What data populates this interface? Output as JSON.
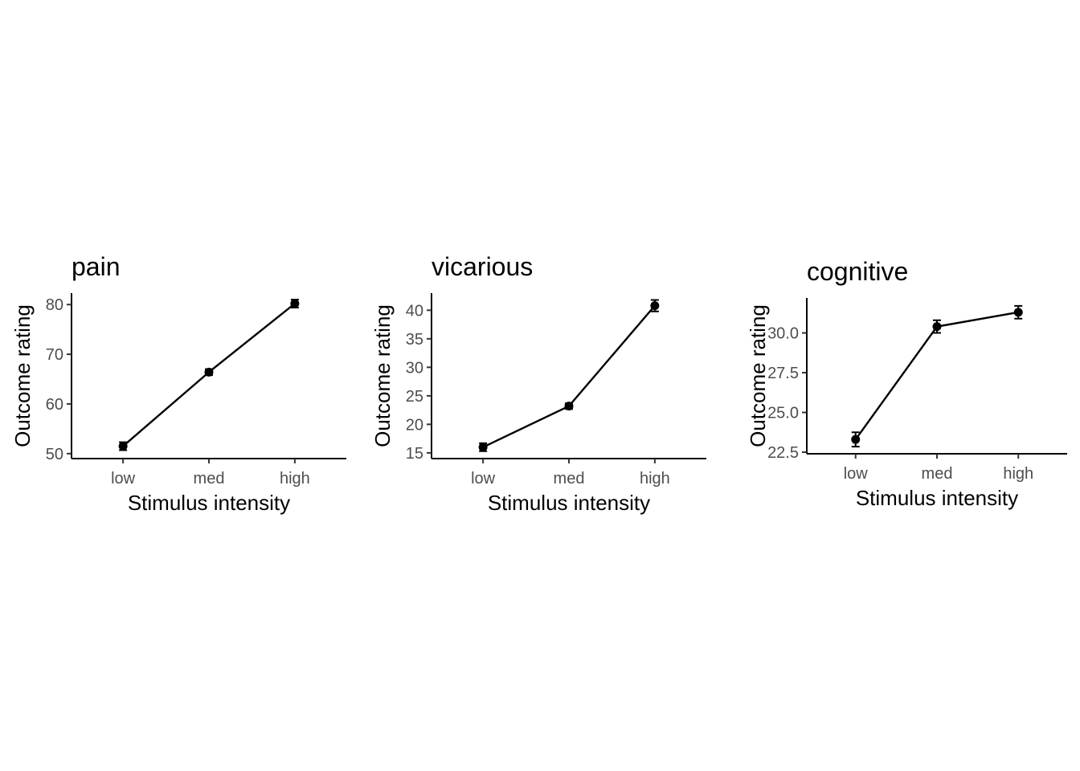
{
  "chart_data": [
    {
      "type": "line",
      "title": "pain",
      "xlabel": "Stimulus intensity",
      "ylabel": "Outcome rating",
      "categories": [
        "low",
        "med",
        "high"
      ],
      "values": [
        51.5,
        66.4,
        80.2
      ],
      "error": [
        0.8,
        0.6,
        0.8
      ],
      "yticks": [
        50,
        60,
        70,
        80
      ],
      "ytick_labels": [
        "50",
        "60",
        "70",
        "80"
      ],
      "ylim": [
        49.0,
        82.3
      ],
      "grid": false
    },
    {
      "type": "line",
      "title": "vicarious",
      "xlabel": "Stimulus intensity",
      "ylabel": "Outcome rating",
      "categories": [
        "low",
        "med",
        "high"
      ],
      "values": [
        16.0,
        23.2,
        40.8
      ],
      "error": [
        0.7,
        0.5,
        1.0
      ],
      "yticks": [
        15,
        20,
        25,
        30,
        35,
        40
      ],
      "ytick_labels": [
        "15",
        "20",
        "25",
        "30",
        "35",
        "40"
      ],
      "ylim": [
        14.0,
        43.0
      ],
      "grid": false
    },
    {
      "type": "line",
      "title": "cognitive",
      "xlabel": "Stimulus intensity",
      "ylabel": "Outcome rating",
      "categories": [
        "low",
        "med",
        "high"
      ],
      "values": [
        23.3,
        30.4,
        31.3
      ],
      "error": [
        0.45,
        0.4,
        0.4
      ],
      "yticks": [
        22.5,
        25.0,
        27.5,
        30.0
      ],
      "ytick_labels": [
        "22.5",
        "25.0",
        "27.5",
        "30.0"
      ],
      "ylim": [
        22.4,
        32.2
      ],
      "grid": false
    }
  ]
}
